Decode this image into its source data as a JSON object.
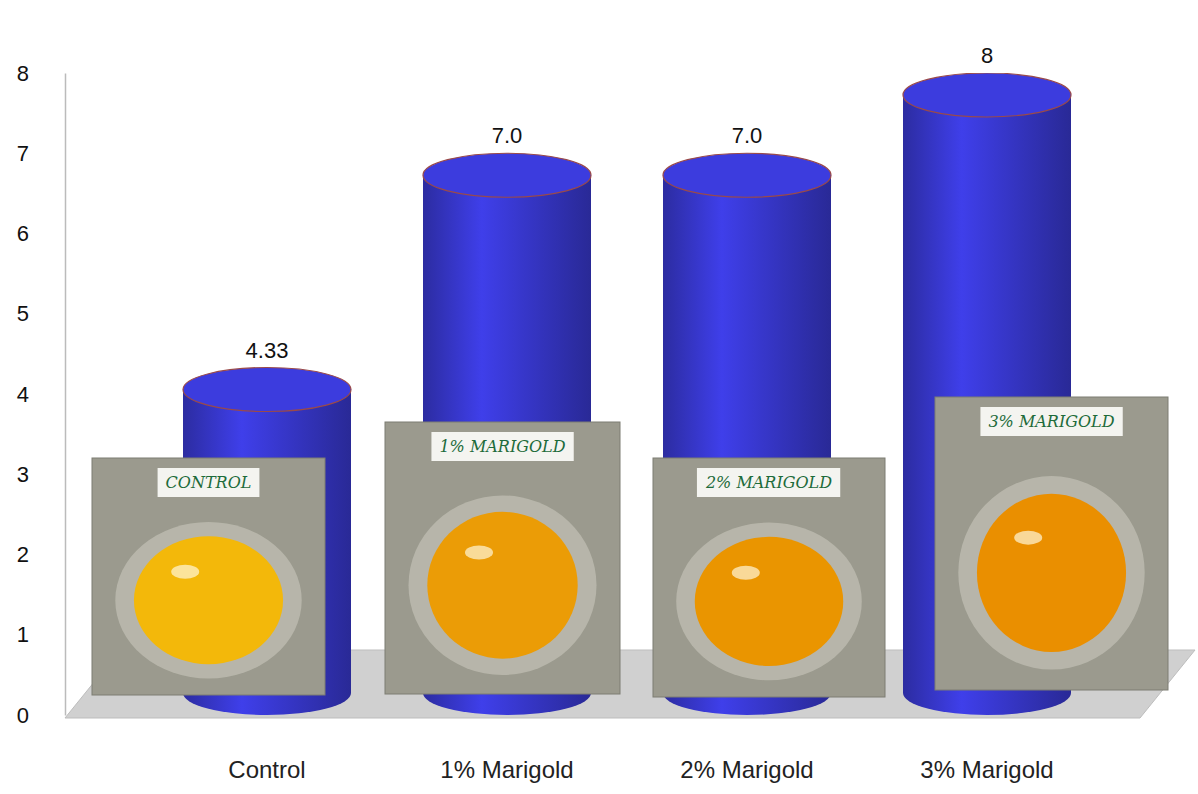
{
  "chart_data": {
    "type": "bar",
    "categories": [
      "Control",
      "1% Marigold",
      "2% Marigold",
      "3% Marigold"
    ],
    "values": [
      4.33,
      7,
      7,
      8
    ],
    "value_labels": [
      "4.33",
      "7.0",
      "7.0",
      "8"
    ],
    "data_labels": true,
    "color": "#3a3ad6",
    "ylim": [
      0,
      8
    ],
    "yticks": [
      0,
      1,
      2,
      3,
      4,
      5,
      6,
      7,
      8
    ],
    "grid": false,
    "annotations": [
      "CONTROL",
      "1% MARIGOLD",
      "2% MARIGOLD",
      "3% MARIGOLD"
    ]
  }
}
